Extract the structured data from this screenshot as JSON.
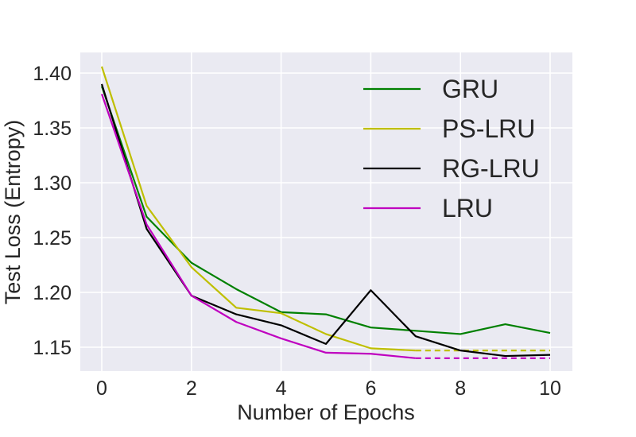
{
  "chart_data": {
    "type": "line",
    "title": "",
    "xlabel": "Number of Epochs",
    "ylabel": "Test Loss (Entropy)",
    "xlim": [
      -0.5,
      10.5
    ],
    "ylim": [
      1.126,
      1.419
    ],
    "xticks": [
      0,
      2,
      4,
      6,
      8,
      10
    ],
    "xtick_labels": [
      "0",
      "2",
      "4",
      "6",
      "8",
      "10"
    ],
    "yticks": [
      1.15,
      1.2,
      1.25,
      1.3,
      1.35,
      1.4
    ],
    "ytick_labels": [
      "1.15",
      "1.20",
      "1.25",
      "1.30",
      "1.35",
      "1.40"
    ],
    "grid": true,
    "legend_position": "top-right",
    "series": [
      {
        "name": "GRU",
        "color": "#008000",
        "x": [
          0,
          1,
          2,
          3,
          4,
          5,
          6,
          7,
          8,
          9,
          10
        ],
        "y": [
          1.388,
          1.269,
          1.227,
          1.203,
          1.182,
          1.18,
          1.168,
          1.165,
          1.162,
          1.171,
          1.163
        ],
        "dashed_from_x": null
      },
      {
        "name": "PS-LRU",
        "color": "#bfbf00",
        "x": [
          0,
          1,
          2,
          3,
          4,
          5,
          6,
          7,
          8,
          9,
          10
        ],
        "y": [
          1.406,
          1.279,
          1.223,
          1.186,
          1.181,
          1.162,
          1.149,
          1.147,
          1.147,
          1.147,
          1.147
        ],
        "dashed_from_x": 7
      },
      {
        "name": "RG-LRU",
        "color": "#000000",
        "x": [
          0,
          1,
          2,
          3,
          4,
          5,
          6,
          7,
          8,
          9,
          10
        ],
        "y": [
          1.39,
          1.258,
          1.197,
          1.18,
          1.17,
          1.153,
          1.202,
          1.16,
          1.147,
          1.142,
          1.143
        ],
        "dashed_from_x": null
      },
      {
        "name": "LRU",
        "color": "#bf00bf",
        "x": [
          0,
          1,
          2,
          3,
          4,
          5,
          6,
          7,
          8,
          9,
          10
        ],
        "y": [
          1.381,
          1.262,
          1.197,
          1.173,
          1.158,
          1.145,
          1.144,
          1.14,
          1.14,
          1.14,
          1.14
        ],
        "dashed_from_x": 7
      }
    ]
  }
}
